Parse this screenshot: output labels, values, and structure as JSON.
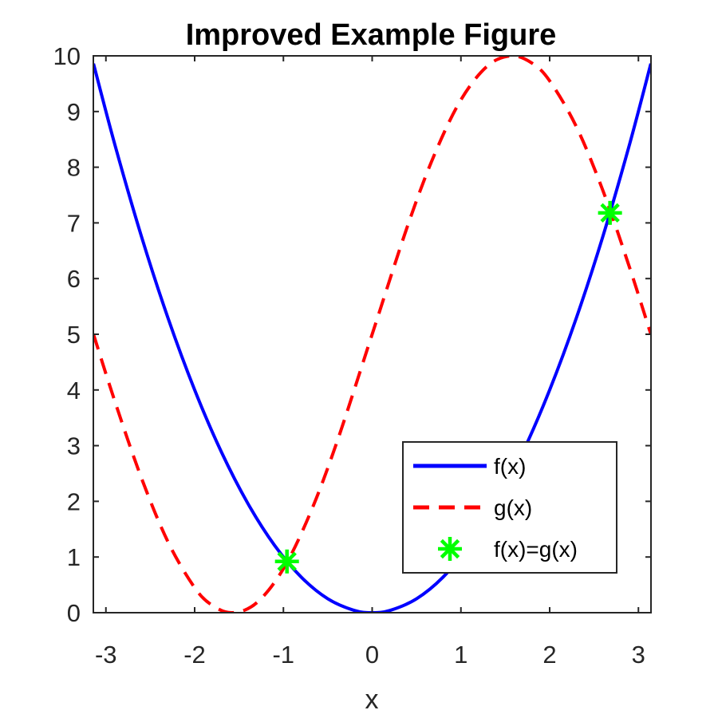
{
  "chart_data": {
    "type": "line",
    "title": "Improved Example Figure",
    "xlabel": "x",
    "ylabel": "",
    "xlim": [
      -3.1416,
      3.1416
    ],
    "ylim": [
      0,
      10
    ],
    "xticks": [
      -3,
      -2,
      -1,
      0,
      1,
      2,
      3
    ],
    "xtick_labels": [
      "-3",
      "-2",
      "-1",
      "0",
      "1",
      "2",
      "3"
    ],
    "yticks": [
      0,
      1,
      2,
      3,
      4,
      5,
      6,
      7,
      8,
      9,
      10
    ],
    "ytick_labels": [
      "0",
      "1",
      "2",
      "3",
      "4",
      "5",
      "6",
      "7",
      "8",
      "9",
      "10"
    ],
    "grid": false,
    "legend_position": "bottom-right",
    "series": [
      {
        "name": "f(x)",
        "style": "solid",
        "color": "#0000ff",
        "x": [
          -3.14,
          -2.9,
          -2.6,
          -2.3,
          -2.0,
          -1.7,
          -1.4,
          -1.1,
          -0.8,
          -0.5,
          -0.2,
          0.0,
          0.2,
          0.5,
          0.8,
          1.1,
          1.4,
          1.7,
          2.0,
          2.3,
          2.6,
          2.9,
          3.14
        ],
        "y": [
          9.86,
          8.41,
          6.76,
          5.29,
          4.0,
          2.89,
          1.96,
          1.21,
          0.64,
          0.25,
          0.04,
          0.0,
          0.04,
          0.25,
          0.64,
          1.21,
          1.96,
          2.89,
          4.0,
          5.29,
          6.76,
          8.41,
          9.86
        ]
      },
      {
        "name": "g(x)",
        "style": "dashed",
        "color": "#ff0000",
        "x": [
          -3.14,
          -2.9,
          -2.6,
          -2.3,
          -2.0,
          -1.8,
          -1.57,
          -1.3,
          -1.0,
          -0.7,
          -0.4,
          0.0,
          0.4,
          0.7,
          1.0,
          1.3,
          1.57,
          1.8,
          2.0,
          2.3,
          2.6,
          2.9,
          3.14
        ],
        "y": [
          5.0,
          3.8,
          2.42,
          1.27,
          0.45,
          0.13,
          0.0,
          0.18,
          0.79,
          1.78,
          3.05,
          5.0,
          6.95,
          8.22,
          9.21,
          9.82,
          10.0,
          9.87,
          9.55,
          8.73,
          7.58,
          6.2,
          5.0
        ]
      },
      {
        "name": "f(x)=g(x)",
        "style": "markers",
        "marker": "asterisk",
        "color": "#00ff00",
        "x": [
          -0.96,
          2.68
        ],
        "y": [
          0.92,
          7.18
        ]
      }
    ]
  }
}
